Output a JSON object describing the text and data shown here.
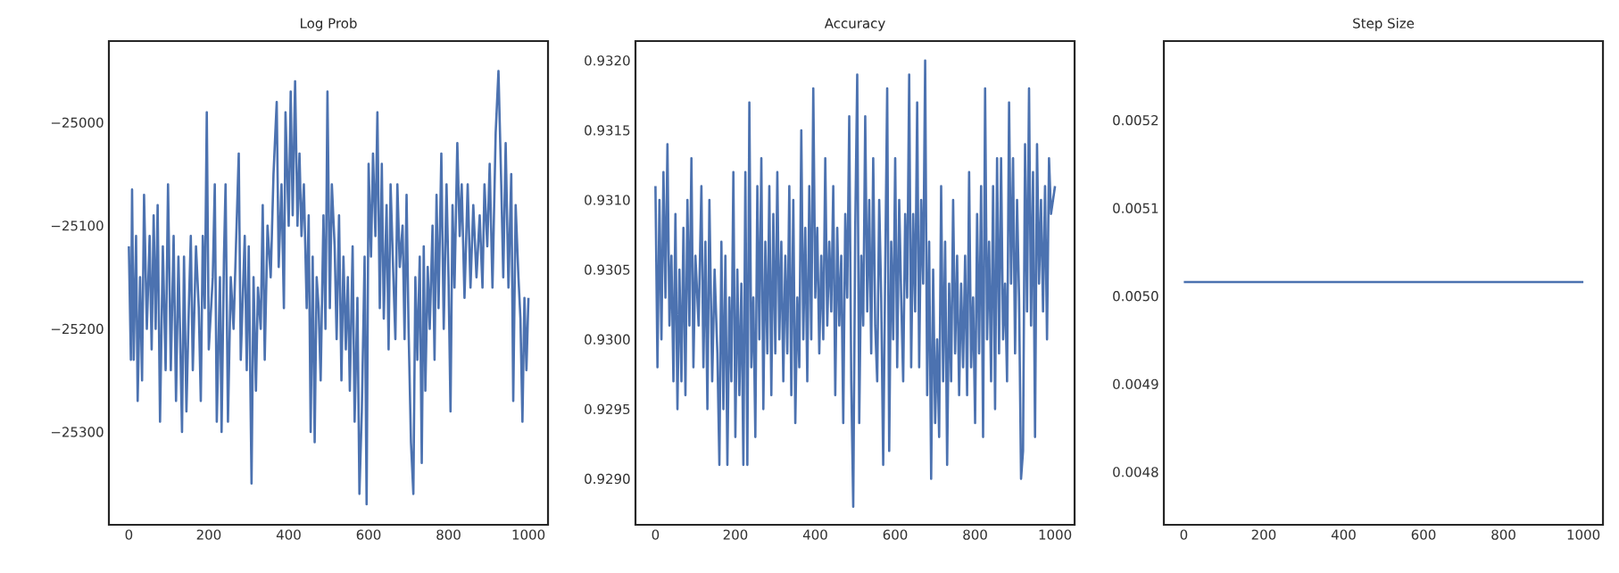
{
  "chart_data": [
    {
      "type": "line",
      "title": "Log Prob",
      "xlim": [
        -50,
        1049
      ],
      "ylim": [
        -25390,
        -24921
      ],
      "xticks": [
        0,
        200,
        400,
        600,
        800,
        1000
      ],
      "yticks": [
        {
          "value": -25300,
          "label": "−25300"
        },
        {
          "value": -25200,
          "label": "−25200"
        },
        {
          "value": -25100,
          "label": "−25100"
        },
        {
          "value": -25000,
          "label": "−25000"
        }
      ],
      "x": [
        0,
        5,
        8,
        12,
        18,
        22,
        28,
        33,
        38,
        45,
        52,
        57,
        62,
        67,
        72,
        78,
        85,
        92,
        98,
        105,
        112,
        118,
        124,
        128,
        133,
        138,
        144,
        150,
        155,
        160,
        168,
        175,
        180,
        185,
        190,
        195,
        200,
        210,
        215,
        220,
        228,
        232,
        238,
        242,
        248,
        255,
        262,
        268,
        275,
        280,
        290,
        295,
        300,
        307,
        312,
        318,
        323,
        330,
        335,
        340,
        347,
        355,
        362,
        370,
        375,
        382,
        388,
        392,
        400,
        405,
        410,
        416,
        422,
        427,
        432,
        438,
        445,
        450,
        455,
        460,
        465,
        470,
        475,
        480,
        487,
        492,
        497,
        503,
        508,
        515,
        520,
        526,
        532,
        537,
        543,
        548,
        553,
        560,
        565,
        572,
        577,
        583,
        590,
        595,
        600,
        606,
        611,
        617,
        622,
        628,
        633,
        638,
        645,
        650,
        655,
        662,
        667,
        672,
        678,
        685,
        690,
        695,
        700,
        706,
        712,
        717,
        722,
        728,
        733,
        738,
        742,
        748,
        753,
        760,
        765,
        770,
        775,
        782,
        788,
        795,
        800,
        805,
        810,
        815,
        822,
        828,
        833,
        840,
        848,
        855,
        862,
        870,
        878,
        885,
        890,
        897,
        903,
        910,
        918,
        925,
        932,
        937,
        943,
        950,
        957,
        962,
        968,
        975,
        980,
        985,
        990,
        995,
        1000
      ],
      "series": [
        {
          "color": "#4c72b0",
          "values": [
            -25120,
            -25230,
            -25065,
            -25230,
            -25110,
            -25270,
            -25150,
            -25250,
            -25070,
            -25200,
            -25110,
            -25220,
            -25090,
            -25200,
            -25080,
            -25290,
            -25120,
            -25240,
            -25060,
            -25240,
            -25110,
            -25270,
            -25130,
            -25200,
            -25300,
            -25130,
            -25280,
            -25180,
            -25110,
            -25240,
            -25120,
            -25180,
            -25270,
            -25110,
            -25180,
            -24990,
            -25220,
            -25150,
            -25060,
            -25290,
            -25150,
            -25300,
            -25130,
            -25060,
            -25290,
            -25150,
            -25200,
            -25120,
            -25030,
            -25230,
            -25110,
            -25240,
            -25120,
            -25350,
            -25150,
            -25260,
            -25160,
            -25200,
            -25080,
            -25230,
            -25100,
            -25150,
            -25050,
            -24980,
            -25140,
            -25060,
            -25180,
            -24990,
            -25100,
            -24970,
            -25090,
            -24960,
            -25100,
            -25030,
            -25110,
            -25060,
            -25180,
            -25090,
            -25300,
            -25130,
            -25310,
            -25150,
            -25180,
            -25250,
            -25090,
            -25200,
            -24970,
            -25180,
            -25060,
            -25120,
            -25210,
            -25090,
            -25250,
            -25130,
            -25220,
            -25150,
            -25260,
            -25120,
            -25290,
            -25170,
            -25360,
            -25280,
            -25130,
            -25370,
            -25040,
            -25130,
            -25030,
            -25110,
            -24990,
            -25180,
            -25040,
            -25190,
            -25080,
            -25220,
            -25060,
            -25150,
            -25210,
            -25060,
            -25140,
            -25100,
            -25210,
            -25070,
            -25200,
            -25310,
            -25360,
            -25150,
            -25230,
            -25130,
            -25330,
            -25120,
            -25260,
            -25140,
            -25200,
            -25100,
            -25230,
            -25070,
            -25180,
            -25030,
            -25200,
            -25060,
            -25150,
            -25280,
            -25080,
            -25160,
            -25020,
            -25110,
            -25060,
            -25170,
            -25060,
            -25160,
            -25080,
            -25150,
            -25090,
            -25160,
            -25060,
            -25120,
            -25040,
            -25160,
            -25010,
            -24950,
            -25060,
            -25150,
            -25020,
            -25160,
            -25050,
            -25270,
            -25080,
            -25150,
            -25190,
            -25290,
            -25170,
            -25240,
            -25170
          ]
        }
      ]
    },
    {
      "type": "line",
      "title": "Accuracy",
      "xlim": [
        -50,
        1049
      ],
      "ylim": [
        0.92867,
        0.93214
      ],
      "xticks": [
        0,
        200,
        400,
        600,
        800,
        1000
      ],
      "yticks": [
        {
          "value": 0.929,
          "label": "0.9290"
        },
        {
          "value": 0.9295,
          "label": "0.9295"
        },
        {
          "value": 0.93,
          "label": "0.9300"
        },
        {
          "value": 0.9305,
          "label": "0.9305"
        },
        {
          "value": 0.931,
          "label": "0.9310"
        },
        {
          "value": 0.9315,
          "label": "0.9315"
        },
        {
          "value": 0.932,
          "label": "0.9320"
        }
      ],
      "x": [
        0,
        5,
        10,
        15,
        20,
        25,
        30,
        35,
        40,
        45,
        50,
        55,
        60,
        65,
        70,
        75,
        80,
        85,
        90,
        95,
        100,
        108,
        115,
        120,
        125,
        130,
        135,
        142,
        148,
        155,
        160,
        165,
        170,
        175,
        180,
        185,
        190,
        195,
        200,
        205,
        210,
        215,
        220,
        225,
        230,
        235,
        240,
        245,
        250,
        255,
        260,
        265,
        270,
        275,
        280,
        285,
        290,
        295,
        300,
        305,
        310,
        315,
        320,
        325,
        330,
        335,
        340,
        345,
        350,
        355,
        360,
        365,
        370,
        375,
        380,
        385,
        390,
        395,
        400,
        405,
        410,
        415,
        420,
        425,
        430,
        435,
        440,
        445,
        450,
        455,
        460,
        465,
        470,
        475,
        480,
        485,
        490,
        495,
        500,
        505,
        510,
        515,
        520,
        525,
        530,
        535,
        540,
        545,
        550,
        555,
        560,
        565,
        570,
        575,
        580,
        585,
        590,
        595,
        600,
        605,
        610,
        615,
        620,
        625,
        630,
        635,
        640,
        645,
        650,
        655,
        660,
        665,
        670,
        675,
        680,
        685,
        690,
        695,
        700,
        705,
        710,
        715,
        720,
        725,
        730,
        735,
        740,
        745,
        750,
        755,
        760,
        765,
        770,
        775,
        780,
        785,
        790,
        795,
        800,
        805,
        810,
        815,
        820,
        825,
        830,
        835,
        840,
        845,
        850,
        855,
        860,
        865,
        870,
        875,
        880,
        885,
        890,
        895,
        900,
        905,
        910,
        915,
        920,
        925,
        930,
        935,
        940,
        945,
        950,
        955,
        960,
        965,
        970,
        975,
        980,
        985,
        990,
        1000
      ],
      "series": [
        {
          "color": "#4c72b0",
          "values": [
            0.9311,
            0.9298,
            0.931,
            0.93,
            0.9312,
            0.9303,
            0.9314,
            0.9301,
            0.9306,
            0.9297,
            0.9309,
            0.9295,
            0.9305,
            0.9297,
            0.9308,
            0.9296,
            0.931,
            0.9301,
            0.9313,
            0.9298,
            0.9306,
            0.9301,
            0.9311,
            0.9298,
            0.9307,
            0.9295,
            0.931,
            0.9297,
            0.9305,
            0.9299,
            0.9291,
            0.9307,
            0.9295,
            0.9306,
            0.9291,
            0.9303,
            0.9297,
            0.9312,
            0.9293,
            0.9305,
            0.9296,
            0.9304,
            0.9291,
            0.9312,
            0.9291,
            0.9317,
            0.9298,
            0.9303,
            0.9293,
            0.9311,
            0.93,
            0.9313,
            0.9295,
            0.9307,
            0.9299,
            0.9311,
            0.9296,
            0.9309,
            0.9299,
            0.9312,
            0.93,
            0.9307,
            0.9297,
            0.9306,
            0.9299,
            0.9311,
            0.9296,
            0.931,
            0.9294,
            0.9303,
            0.9298,
            0.9315,
            0.93,
            0.9308,
            0.9297,
            0.9311,
            0.93,
            0.9318,
            0.9303,
            0.9308,
            0.9299,
            0.9306,
            0.93,
            0.9313,
            0.9301,
            0.9307,
            0.9302,
            0.9311,
            0.9296,
            0.9308,
            0.9301,
            0.9306,
            0.9294,
            0.9309,
            0.9303,
            0.9316,
            0.9297,
            0.9288,
            0.9308,
            0.9319,
            0.9294,
            0.9306,
            0.9301,
            0.9316,
            0.9302,
            0.931,
            0.9299,
            0.9313,
            0.9301,
            0.9297,
            0.931,
            0.9303,
            0.9291,
            0.9305,
            0.9318,
            0.9292,
            0.9307,
            0.93,
            0.9313,
            0.9298,
            0.931,
            0.9303,
            0.9297,
            0.9309,
            0.9303,
            0.9319,
            0.9298,
            0.9309,
            0.9302,
            0.9317,
            0.9298,
            0.931,
            0.9304,
            0.932,
            0.9296,
            0.9307,
            0.929,
            0.9305,
            0.9294,
            0.93,
            0.9293,
            0.9311,
            0.9297,
            0.9307,
            0.9291,
            0.9304,
            0.9297,
            0.931,
            0.9299,
            0.9306,
            0.9296,
            0.9304,
            0.9298,
            0.9306,
            0.9296,
            0.9312,
            0.9298,
            0.9303,
            0.9294,
            0.9309,
            0.9299,
            0.9311,
            0.9293,
            0.9318,
            0.93,
            0.9307,
            0.9297,
            0.9311,
            0.9295,
            0.9313,
            0.9299,
            0.9313,
            0.93,
            0.9304,
            0.9297,
            0.9317,
            0.9304,
            0.9313,
            0.9299,
            0.931,
            0.9303,
            0.929,
            0.9292,
            0.9314,
            0.9302,
            0.9318,
            0.9301,
            0.9312,
            0.9293,
            0.9314,
            0.9304,
            0.931,
            0.9302,
            0.9311,
            0.93,
            0.9313,
            0.9309,
            0.9311
          ]
        }
      ]
    },
    {
      "type": "line",
      "title": "Step Size",
      "xlim": [
        -50,
        1049
      ],
      "ylim": [
        0.00474,
        0.00529
      ],
      "xticks": [
        0,
        200,
        400,
        600,
        800,
        1000
      ],
      "yticks": [
        {
          "value": 0.0048,
          "label": "0.0048"
        },
        {
          "value": 0.0049,
          "label": "0.0049"
        },
        {
          "value": 0.005,
          "label": "0.0050"
        },
        {
          "value": 0.0051,
          "label": "0.0051"
        },
        {
          "value": 0.0052,
          "label": "0.0052"
        }
      ],
      "x": [
        0,
        1000
      ],
      "series": [
        {
          "color": "#4c72b0",
          "values": [
            0.005016,
            0.005016
          ]
        }
      ]
    }
  ]
}
